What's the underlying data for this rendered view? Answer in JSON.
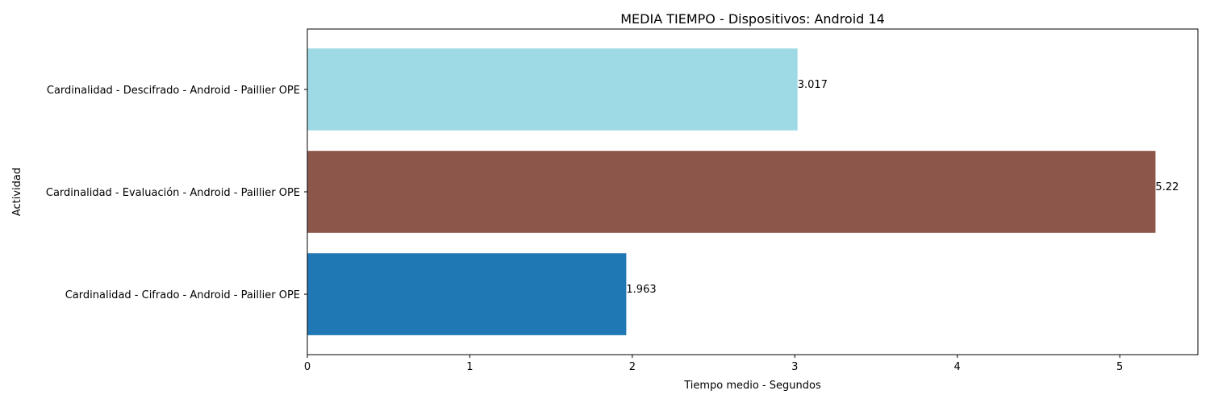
{
  "chart_data": {
    "type": "bar",
    "orientation": "horizontal",
    "title": "MEDIA TIEMPO - Dispositivos: Android 14",
    "xlabel": "Tiempo medio - Segundos",
    "ylabel": "Actividad",
    "xlim": [
      0,
      5.481
    ],
    "xticks": [
      0,
      1,
      2,
      3,
      4,
      5
    ],
    "grid": false,
    "categories": [
      "Cardinalidad - Cifrado - Android - Paillier OPE",
      "Cardinalidad - Evaluación - Android - Paillier OPE",
      "Cardinalidad - Descifrado - Android - Paillier OPE"
    ],
    "values": [
      1.963,
      5.22,
      3.017
    ],
    "value_labels": [
      "1.963",
      "5.22",
      "3.017"
    ],
    "colors": [
      "#1f77b4",
      "#8c564b",
      "#9edae5"
    ]
  }
}
